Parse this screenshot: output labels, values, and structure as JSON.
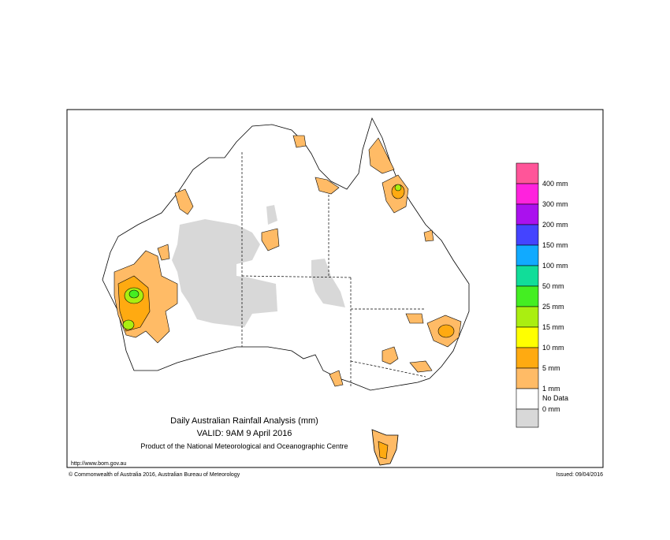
{
  "title": "Daily Australian Rainfall Analysis (mm)",
  "valid": "VALID: 9AM  9 April 2016",
  "product": "Product of the National Meteorological and Oceanographic Centre",
  "url": "http://www.bom.gov.au",
  "copyright": "© Commonwealth of Australia 2016, Australian Bureau of Meteorology",
  "issued": "Issued: 09/04/2016",
  "legend": {
    "colors": [
      "#ff5599",
      "#ff22dd",
      "#aa11ee",
      "#4444ff",
      "#11aaff",
      "#11dd99",
      "#44ee22",
      "#aaee11",
      "#ffff00",
      "#ffaa11",
      "#ffbb66",
      "#ffffff",
      "#d8d8d8"
    ],
    "labels": [
      "400 mm",
      "300 mm",
      "200 mm",
      "150 mm",
      "100 mm",
      "50 mm",
      "25 mm",
      "15 mm",
      "10 mm",
      "5 mm",
      "1 mm",
      "0 mm",
      "No Data"
    ]
  }
}
